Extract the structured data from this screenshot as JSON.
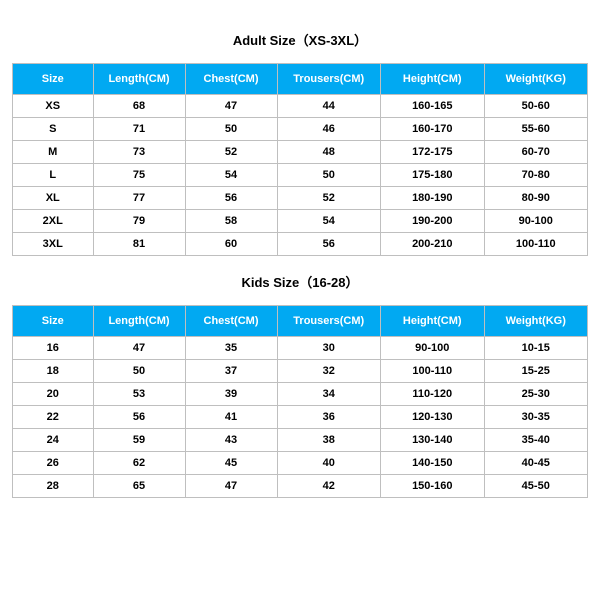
{
  "style": {
    "header_bg": "#01a9f2",
    "header_fg": "#ffffff",
    "border_color": "#bfbfbf",
    "body_bg": "#ffffff",
    "title_fontsize": 13,
    "header_fontsize": 11,
    "cell_fontsize": 11,
    "font_family": "Arial, sans-serif",
    "col_widths_pct": [
      14,
      16,
      16,
      18,
      18,
      18
    ]
  },
  "adult": {
    "title": "Adult Size（XS-3XL）",
    "columns": [
      "Size",
      "Length(CM)",
      "Chest(CM)",
      "Trousers(CM)",
      "Height(CM)",
      "Weight(KG)"
    ],
    "rows": [
      [
        "XS",
        "68",
        "47",
        "44",
        "160-165",
        "50-60"
      ],
      [
        "S",
        "71",
        "50",
        "46",
        "160-170",
        "55-60"
      ],
      [
        "M",
        "73",
        "52",
        "48",
        "172-175",
        "60-70"
      ],
      [
        "L",
        "75",
        "54",
        "50",
        "175-180",
        "70-80"
      ],
      [
        "XL",
        "77",
        "56",
        "52",
        "180-190",
        "80-90"
      ],
      [
        "2XL",
        "79",
        "58",
        "54",
        "190-200",
        "90-100"
      ],
      [
        "3XL",
        "81",
        "60",
        "56",
        "200-210",
        "100-110"
      ]
    ]
  },
  "kids": {
    "title": "Kids Size（16-28）",
    "columns": [
      "Size",
      "Length(CM)",
      "Chest(CM)",
      "Trousers(CM)",
      "Height(CM)",
      "Weight(KG)"
    ],
    "rows": [
      [
        "16",
        "47",
        "35",
        "30",
        "90-100",
        "10-15"
      ],
      [
        "18",
        "50",
        "37",
        "32",
        "100-110",
        "15-25"
      ],
      [
        "20",
        "53",
        "39",
        "34",
        "110-120",
        "25-30"
      ],
      [
        "22",
        "56",
        "41",
        "36",
        "120-130",
        "30-35"
      ],
      [
        "24",
        "59",
        "43",
        "38",
        "130-140",
        "35-40"
      ],
      [
        "26",
        "62",
        "45",
        "40",
        "140-150",
        "40-45"
      ],
      [
        "28",
        "65",
        "47",
        "42",
        "150-160",
        "45-50"
      ]
    ]
  }
}
